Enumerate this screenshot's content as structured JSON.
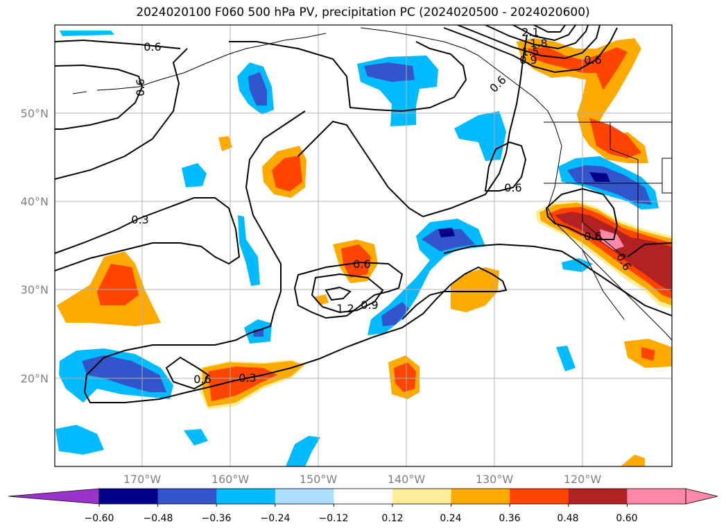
{
  "title": "2024020100 F060 500 hPa PV, precipitation PC (2024020500 - 2024020600)",
  "lat_labels": [
    "50°N",
    "40°N",
    "30°N",
    "20°N"
  ],
  "lon_labels": [
    "170°W",
    "160°W",
    "150°W",
    "140°W",
    "130°W",
    "120°W"
  ],
  "contour_labels": [
    "0.6",
    "0.6",
    "0.3",
    "0.6",
    "1.2",
    "0.9",
    "0.6",
    "0.3",
    "0.6",
    "2.1",
    "1.8",
    "1.5",
    "0.9",
    "0.6",
    "0.6",
    "0.6",
    "0.6"
  ],
  "colorbar": {
    "ticks": [
      "−0.60",
      "−0.48",
      "−0.36",
      "−0.24",
      "−0.12",
      "0.12",
      "0.24",
      "0.36",
      "0.48",
      "0.60"
    ],
    "colors": [
      "#9933cc",
      "#00008b",
      "#3355cc",
      "#00bbff",
      "#aaddff",
      "#ffffff",
      "#ffee99",
      "#ffaa00",
      "#ff4400",
      "#b22222",
      "#ff88aa",
      "#ff88aa"
    ]
  }
}
